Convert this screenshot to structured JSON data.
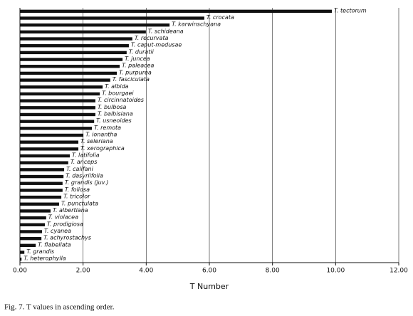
{
  "chart_data": {
    "type": "bar",
    "orientation": "horizontal",
    "categories": [
      "T. tectorum",
      "T. crocata",
      "T. karwinschyana",
      "T. schideana",
      "T. recurvata",
      "T. caput-medusae",
      "T. duratii",
      "T. juncea",
      "T. paleacea",
      "T. purpurea",
      "T. fasciculata",
      "T. albida",
      "T. bourgaei",
      "T. circinnatoides",
      "T. bulbosa",
      "T. balbisiana",
      "T. usneoides",
      "T. remota",
      "T. ionantha",
      "T. seleriana",
      "T. xerographica",
      "T. latifolia",
      "T. anceps",
      "T. califani",
      "T. dasyriifolia",
      "T. grandis (juv.)",
      "T. foliosa",
      "T. tricolor",
      "T. punctulata",
      "T. albertiana",
      "T. violacea",
      "T. prodigiosa",
      "T. cyanea",
      "T. achyrostachys",
      "T. flabellata",
      "T. grandis",
      "T. heterophylla"
    ],
    "values": [
      9.88,
      5.84,
      4.74,
      3.99,
      3.56,
      3.45,
      3.38,
      3.25,
      3.16,
      3.07,
      2.86,
      2.62,
      2.53,
      2.39,
      2.39,
      2.39,
      2.35,
      2.28,
      2.01,
      1.85,
      1.85,
      1.58,
      1.53,
      1.4,
      1.38,
      1.35,
      1.35,
      1.31,
      1.24,
      0.97,
      0.83,
      0.79,
      0.7,
      0.68,
      0.5,
      0.14,
      0.05
    ],
    "color": "#111111",
    "xlabel": "T Number",
    "xlim": [
      0,
      12
    ],
    "xticks": [
      {
        "value": 0,
        "label": "0.00"
      },
      {
        "value": 2,
        "label": "2.00"
      },
      {
        "value": 4,
        "label": "4.00"
      },
      {
        "value": 6,
        "label": "6.00"
      },
      {
        "value": 8,
        "label": "8.00"
      },
      {
        "value": 10,
        "label": "10.00"
      },
      {
        "value": 12,
        "label": "12.00"
      }
    ],
    "grid": true,
    "caption": "Fig. 7. T values in ascending order."
  }
}
